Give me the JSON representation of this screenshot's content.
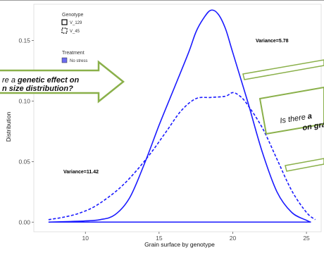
{
  "chart_data": {
    "type": "line",
    "xlabel": "Grain surface by genotype",
    "ylabel": "Distribution",
    "xlim": [
      6.5,
      26
    ],
    "ylim": [
      -0.008,
      0.18
    ],
    "x_ticks": [
      10,
      15,
      20,
      25
    ],
    "y_ticks": [
      0.0,
      0.05,
      0.1,
      0.15
    ],
    "y_tick_labels": [
      "0.00",
      "0.05",
      "0.10",
      "0.15"
    ],
    "grid": false,
    "legend": {
      "position": "top-left",
      "genotype_title": "Genotype",
      "genotypes": [
        "V_129",
        "V_45"
      ],
      "treatment_title": "Treatment",
      "treatments": [
        "No stress"
      ]
    },
    "series": [
      {
        "name": "V_129",
        "style": "solid",
        "color": "#1a1aff",
        "x": [
          7.5,
          9,
          10,
          11,
          12,
          13,
          14,
          15,
          16,
          17,
          17.5,
          18,
          18.5,
          19,
          19.5,
          20,
          21,
          22,
          23,
          24,
          25,
          25.3
        ],
        "y": [
          0.0,
          0.0005,
          0.001,
          0.002,
          0.006,
          0.02,
          0.048,
          0.08,
          0.11,
          0.14,
          0.157,
          0.168,
          0.175,
          0.172,
          0.16,
          0.14,
          0.1,
          0.058,
          0.025,
          0.008,
          0.0015,
          0.0
        ]
      },
      {
        "name": "V_45",
        "style": "dashed",
        "color": "#1a1aff",
        "x": [
          7.5,
          8.5,
          9.5,
          10.5,
          11.5,
          12.5,
          13.5,
          14.5,
          15.5,
          16.5,
          17.5,
          18.5,
          19.5,
          20,
          20.5,
          21,
          22,
          23,
          24,
          25,
          25.6
        ],
        "y": [
          0.002,
          0.004,
          0.007,
          0.012,
          0.02,
          0.03,
          0.043,
          0.058,
          0.075,
          0.092,
          0.102,
          0.103,
          0.104,
          0.107,
          0.104,
          0.097,
          0.078,
          0.052,
          0.026,
          0.008,
          0.002
        ]
      }
    ],
    "annotations": [
      {
        "text": "Variance=5.78",
        "near_series": "V_129"
      },
      {
        "text": "Variance=11.42",
        "near_series": "V_45"
      }
    ]
  },
  "callouts": {
    "left": {
      "line1_pre": "re a ",
      "line1_bold": "genetic effect on",
      "line2": "n size distribution?"
    },
    "right": {
      "line1_pre": "Is there ",
      "line1_cut": "a",
      "line2": "on gra"
    }
  },
  "colors": {
    "line": "#1a1aff",
    "fill_no_stress": "#6b6bef",
    "callout_border": "#8ab04a"
  }
}
